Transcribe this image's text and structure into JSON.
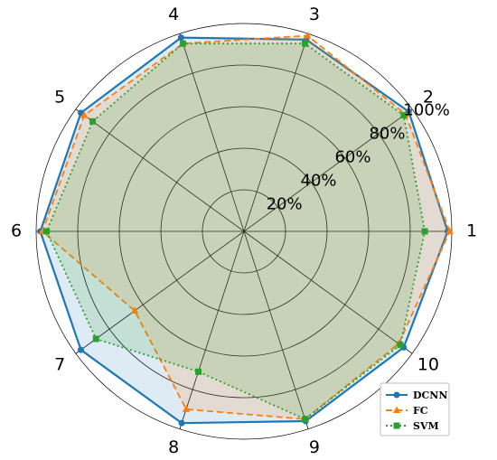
{
  "chart_data": {
    "type": "radar",
    "categories": [
      "1",
      "2",
      "3",
      "4",
      "5",
      "6",
      "7",
      "8",
      "9",
      "10"
    ],
    "ring_labels": [
      "20%",
      "40%",
      "60%",
      "80%",
      "100%"
    ],
    "rlim": [
      0,
      100
    ],
    "grid": true,
    "legend_position": "bottom-right",
    "series": [
      {
        "name": "DCNN",
        "color": "#1f77b4",
        "marker": "circle",
        "line": "solid",
        "fill_opacity": 0.15,
        "values": [
          98,
          98,
          97,
          98,
          97,
          98,
          97,
          97,
          96,
          95
        ]
      },
      {
        "name": "FC",
        "color": "#ff7f0e",
        "marker": "triangle",
        "line": "dashed",
        "fill_opacity": 0.15,
        "values": [
          99,
          96,
          99,
          95,
          95,
          97,
          65,
          90,
          95,
          92
        ]
      },
      {
        "name": "SVM",
        "color": "#2ca02c",
        "marker": "square",
        "line": "dotted",
        "fill_opacity": 0.15,
        "values": [
          87,
          95,
          95,
          95,
          90,
          95,
          88,
          71,
          95,
          93
        ]
      }
    ]
  }
}
